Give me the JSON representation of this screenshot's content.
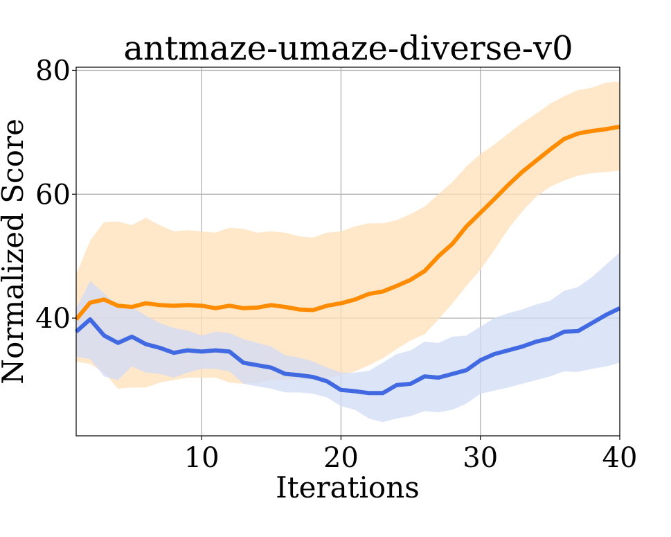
{
  "chart_data": {
    "type": "line",
    "title": "antmaze-umaze-diverse-v0",
    "xlabel": "Iterations",
    "ylabel": "Normalized Score",
    "xlim": [
      1,
      40
    ],
    "ylim": [
      21,
      80.5
    ],
    "xticks": [
      10,
      20,
      30,
      40
    ],
    "yticks": [
      40,
      60,
      80
    ],
    "grid": true,
    "x": [
      1,
      2,
      3,
      4,
      5,
      6,
      7,
      8,
      9,
      10,
      11,
      12,
      13,
      14,
      15,
      16,
      17,
      18,
      19,
      20,
      21,
      22,
      23,
      24,
      25,
      26,
      27,
      28,
      29,
      30,
      31,
      32,
      33,
      34,
      35,
      36,
      37,
      38,
      39,
      40
    ],
    "series": [
      {
        "name": "orange",
        "color": "#ff8c00",
        "band_color": "#ffdfb8",
        "values": [
          39.8,
          42.5,
          43.0,
          42.0,
          41.8,
          42.4,
          42.1,
          42.0,
          42.1,
          42.0,
          41.6,
          42.0,
          41.6,
          41.7,
          42.1,
          41.8,
          41.4,
          41.3,
          42.0,
          42.4,
          43.0,
          43.9,
          44.3,
          45.2,
          46.2,
          47.6,
          50.0,
          52.0,
          54.8,
          57.0,
          59.2,
          61.5,
          63.6,
          65.4,
          67.2,
          68.9,
          69.8,
          70.2,
          70.5,
          70.9
        ],
        "upper": [
          47.0,
          52.5,
          55.5,
          55.6,
          55.0,
          56.2,
          55.0,
          54.0,
          54.2,
          54.0,
          53.8,
          54.6,
          54.4,
          53.8,
          54.0,
          53.8,
          53.2,
          53.0,
          53.8,
          54.0,
          54.8,
          55.3,
          55.3,
          55.8,
          56.8,
          58.0,
          60.0,
          62.0,
          64.5,
          66.5,
          68.0,
          69.8,
          71.5,
          73.0,
          74.6,
          75.8,
          76.8,
          77.2,
          78.0,
          78.2
        ],
        "lower": [
          33.0,
          32.6,
          31.2,
          28.6,
          28.8,
          28.8,
          29.6,
          30.0,
          30.4,
          30.4,
          30.4,
          29.6,
          29.4,
          29.6,
          30.0,
          30.0,
          30.2,
          30.0,
          30.3,
          30.8,
          31.4,
          32.4,
          33.5,
          35.0,
          36.4,
          37.4,
          39.8,
          42.4,
          45.2,
          47.8,
          51.0,
          54.4,
          57.2,
          59.6,
          61.2,
          62.2,
          63.0,
          63.4,
          63.6,
          63.8
        ]
      },
      {
        "name": "blue",
        "color": "#4169e1",
        "band_color": "#d0dbf6",
        "values": [
          37.8,
          39.8,
          37.2,
          36.0,
          37.0,
          35.8,
          35.2,
          34.4,
          34.8,
          34.6,
          34.8,
          34.6,
          32.8,
          32.4,
          32.0,
          31.0,
          30.8,
          30.5,
          29.8,
          28.4,
          28.2,
          27.9,
          27.9,
          29.2,
          29.4,
          30.6,
          30.4,
          31.0,
          31.6,
          33.2,
          34.2,
          34.8,
          35.4,
          36.2,
          36.7,
          37.8,
          37.9,
          39.2,
          40.5,
          41.6
        ],
        "upper": [
          41.5,
          46.0,
          44.0,
          42.0,
          41.8,
          40.4,
          39.2,
          38.4,
          38.0,
          37.2,
          37.8,
          37.6,
          36.6,
          36.0,
          35.4,
          34.0,
          33.6,
          33.0,
          32.0,
          31.2,
          31.2,
          31.5,
          32.8,
          34.2,
          34.8,
          36.2,
          36.0,
          37.0,
          37.2,
          38.6,
          40.0,
          40.8,
          41.4,
          42.2,
          42.8,
          44.4,
          45.0,
          46.6,
          48.6,
          50.6
        ],
        "lower": [
          33.8,
          33.4,
          30.6,
          30.0,
          32.2,
          31.2,
          31.0,
          30.4,
          31.2,
          31.8,
          31.8,
          31.4,
          29.4,
          29.0,
          28.6,
          28.0,
          28.0,
          27.8,
          27.2,
          25.8,
          25.2,
          23.8,
          23.2,
          23.8,
          24.2,
          25.0,
          24.8,
          25.2,
          26.2,
          27.8,
          28.3,
          28.8,
          29.4,
          30.0,
          30.6,
          31.4,
          31.3,
          31.8,
          32.2,
          32.8
        ]
      }
    ]
  }
}
